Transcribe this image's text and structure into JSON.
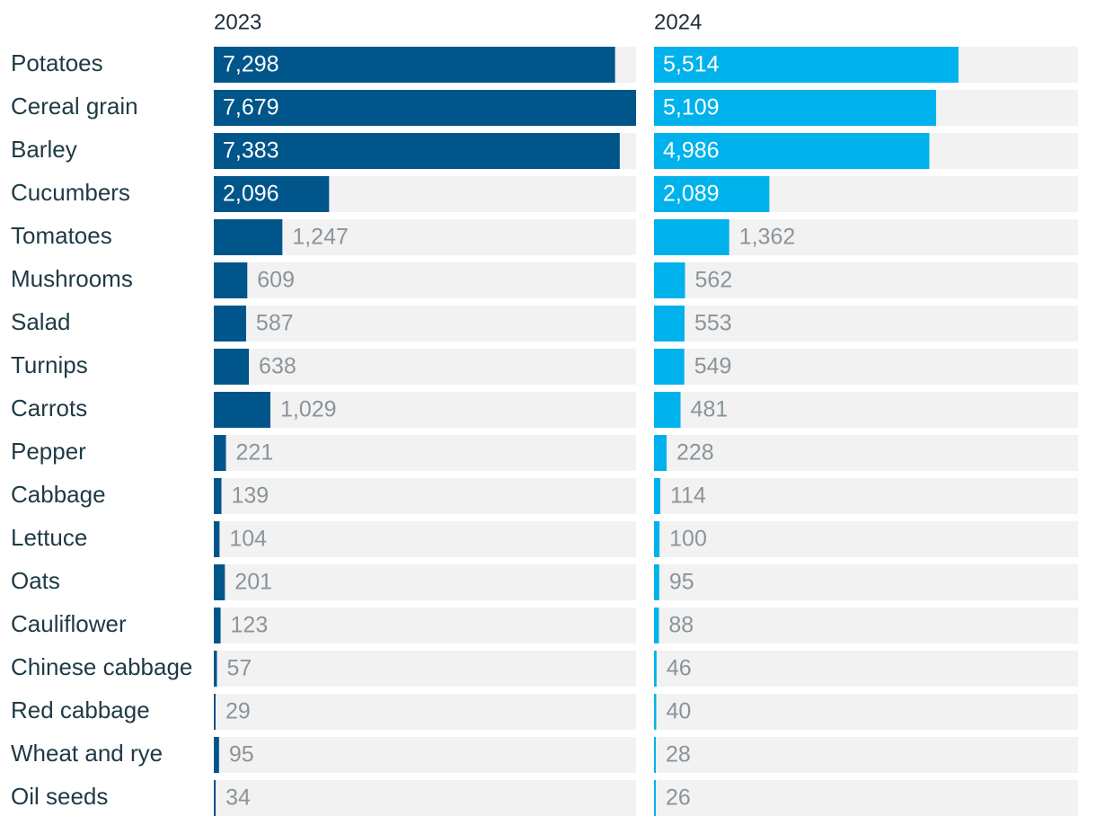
{
  "chart_data": {
    "type": "bar",
    "orientation": "horizontal",
    "layout": "small-multiples",
    "categories": [
      "Potatoes",
      "Cereal grain",
      "Barley",
      "Cucumbers",
      "Tomatoes",
      "Mushrooms",
      "Salad",
      "Turnips",
      "Carrots",
      "Pepper",
      "Cabbage",
      "Lettuce",
      "Oats",
      "Cauliflower",
      "Chinese cabbage",
      "Red cabbage",
      "Wheat and rye",
      "Oil seeds"
    ],
    "series": [
      {
        "name": "2023",
        "color": "#00558a",
        "values": [
          7298,
          7679,
          7383,
          2096,
          1247,
          609,
          587,
          638,
          1029,
          221,
          139,
          104,
          201,
          123,
          57,
          29,
          95,
          34
        ]
      },
      {
        "name": "2024",
        "color": "#00b2eb",
        "values": [
          5514,
          5109,
          4986,
          2089,
          1362,
          562,
          553,
          549,
          481,
          228,
          114,
          100,
          95,
          88,
          46,
          40,
          28,
          26
        ]
      }
    ],
    "xlim": [
      0,
      7679
    ],
    "background_track_color": "#f2f2f2",
    "grid": false,
    "legend": "none"
  }
}
